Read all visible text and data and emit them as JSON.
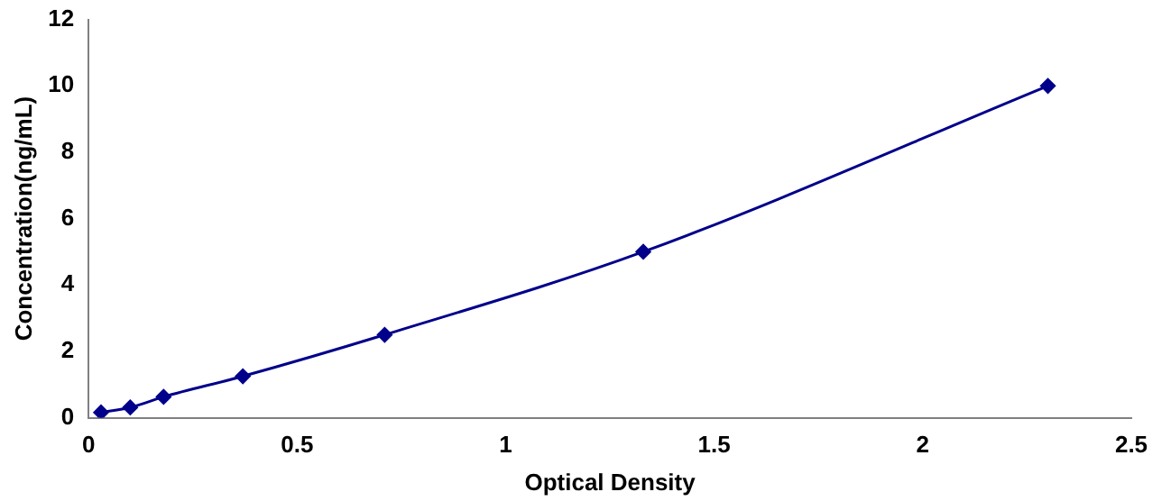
{
  "chart_data": {
    "type": "line",
    "xlabel": "Optical Density",
    "ylabel": "Concentration(ng/mL)",
    "x": [
      0.03,
      0.1,
      0.18,
      0.37,
      0.71,
      1.33,
      2.3
    ],
    "series": [
      {
        "color": "#00008b",
        "values": [
          0.16,
          0.31,
          0.63,
          1.25,
          2.5,
          5,
          10
        ]
      }
    ],
    "xlim": [
      0,
      2.5
    ],
    "xticks": [
      0,
      0.5,
      1,
      1.5,
      2,
      2.5
    ],
    "ylim": [
      0,
      12
    ],
    "yticks": [
      0,
      2,
      4,
      6,
      8,
      10,
      12
    ],
    "grid": false,
    "legend": false,
    "marker": "diamond",
    "line_style": "solid"
  }
}
